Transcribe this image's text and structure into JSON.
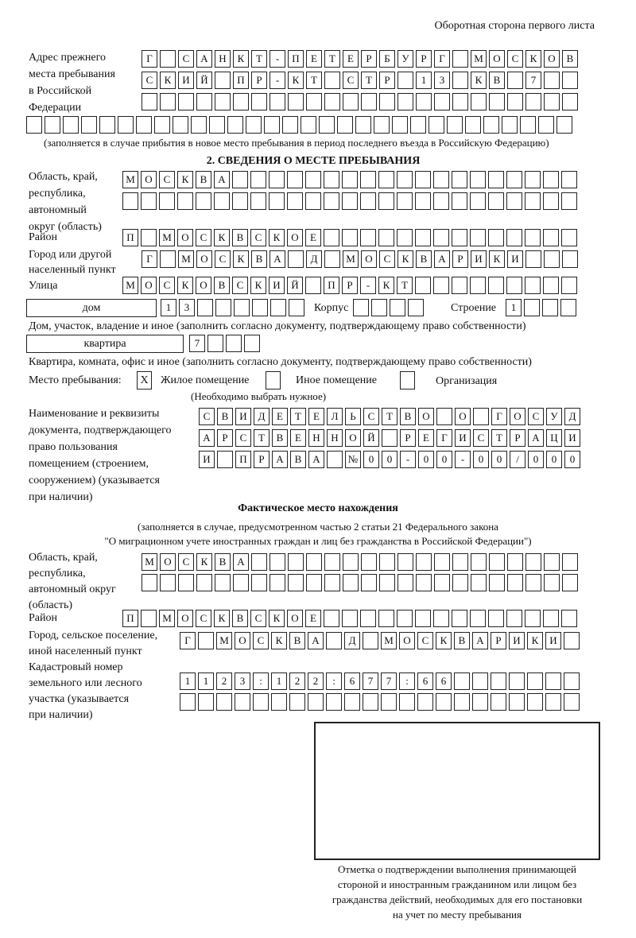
{
  "page_header": "Оборотная сторона первого листа",
  "prev_address": {
    "label": [
      "Адрес прежнего",
      "места пребывания",
      "в Российской",
      "Федерации"
    ],
    "rows": [
      [
        "Г",
        "",
        "С",
        "А",
        "Н",
        "К",
        "Т",
        "-",
        "П",
        "Е",
        "Т",
        "Е",
        "Р",
        "Б",
        "У",
        "Р",
        "Г",
        "",
        "М",
        "О",
        "С",
        "К",
        "О",
        "В"
      ],
      [
        "С",
        "К",
        "И",
        "Й",
        "",
        "П",
        "Р",
        "-",
        "К",
        "Т",
        "",
        "С",
        "Т",
        "Р",
        "",
        "1",
        "3",
        "",
        "К",
        "В",
        "",
        "7",
        "",
        ""
      ],
      [
        "",
        "",
        "",
        "",
        "",
        "",
        "",
        "",
        "",
        "",
        "",
        "",
        "",
        "",
        "",
        "",
        "",
        "",
        "",
        "",
        "",
        "",
        "",
        ""
      ],
      [
        "",
        "",
        "",
        "",
        "",
        "",
        "",
        "",
        "",
        "",
        "",
        "",
        "",
        "",
        "",
        "",
        "",
        "",
        "",
        "",
        "",
        "",
        "",
        "",
        "",
        "",
        "",
        "",
        "",
        ""
      ]
    ],
    "note": "(заполняется в случае прибытия в новое место пребывания в период последнего въезда в Российскую Федерацию)"
  },
  "section2": {
    "title": "2. СВЕДЕНИЯ О МЕСТЕ ПРЕБЫВАНИЯ",
    "region_label": [
      "Область, край,",
      "республика,",
      "автономный",
      "округ (область)"
    ],
    "region_rows": [
      [
        "М",
        "О",
        "С",
        "К",
        "В",
        "А",
        "",
        "",
        "",
        "",
        "",
        "",
        "",
        "",
        "",
        "",
        "",
        "",
        "",
        "",
        "",
        "",
        "",
        "",
        ""
      ],
      [
        "",
        "",
        "",
        "",
        "",
        "",
        "",
        "",
        "",
        "",
        "",
        "",
        "",
        "",
        "",
        "",
        "",
        "",
        "",
        "",
        "",
        "",
        "",
        "",
        ""
      ]
    ],
    "district_label": "Район",
    "district": [
      "П",
      "",
      "М",
      "О",
      "С",
      "К",
      "В",
      "С",
      "К",
      "О",
      "Е",
      "",
      "",
      "",
      "",
      "",
      "",
      "",
      "",
      "",
      "",
      "",
      "",
      "",
      ""
    ],
    "city_label": [
      "Город или другой",
      "населенный пункт"
    ],
    "city": [
      "Г",
      "",
      "М",
      "О",
      "С",
      "К",
      "В",
      "А",
      "",
      "Д",
      "",
      "М",
      "О",
      "С",
      "К",
      "В",
      "А",
      "Р",
      "И",
      "К",
      "И",
      "",
      "",
      ""
    ],
    "street_label": "Улица",
    "street": [
      "М",
      "О",
      "С",
      "К",
      "О",
      "В",
      "С",
      "К",
      "И",
      "Й",
      "",
      "П",
      "Р",
      "-",
      "К",
      "Т",
      "",
      "",
      "",
      "",
      "",
      "",
      "",
      "",
      ""
    ],
    "house_type": "дом",
    "house": [
      "1",
      "3",
      "",
      "",
      "",
      "",
      "",
      ""
    ],
    "korpus_label": "Корпус",
    "korpus": [
      "",
      "",
      "",
      ""
    ],
    "building_label": "Строение",
    "building": [
      "1",
      "",
      "",
      ""
    ],
    "house_note": "Дом, участок, владение и иное (заполнить согласно документу, подтверждающему право собственности)",
    "flat_type": "квартира",
    "flat": [
      "7",
      "",
      "",
      ""
    ],
    "flat_note": "Квартира, комната, офис и иное (заполнить согласно документу, подтверждающему право собственности)",
    "stay_label": "Место пребывания:",
    "stay_options": [
      {
        "label": "Жилое помещение",
        "mark": "X"
      },
      {
        "label": "Иное помещение",
        "mark": ""
      },
      {
        "label": "Организация",
        "mark": ""
      }
    ],
    "stay_note": "(Необходимо выбрать нужное)",
    "doc_label": [
      "Наименование и реквизиты",
      "документа, подтверждающего",
      "право пользования",
      "помещением (строением,",
      "сооружением) (указывается",
      "при наличии)"
    ],
    "doc_rows": [
      [
        "С",
        "В",
        "И",
        "Д",
        "Е",
        "Т",
        "Е",
        "Л",
        "Ь",
        "С",
        "Т",
        "В",
        "О",
        "",
        "О",
        "",
        "Г",
        "О",
        "С",
        "У",
        "Д"
      ],
      [
        "А",
        "Р",
        "С",
        "Т",
        "В",
        "Е",
        "Н",
        "Н",
        "О",
        "Й",
        "",
        "Р",
        "Е",
        "Г",
        "И",
        "С",
        "Т",
        "Р",
        "А",
        "Ц",
        "И"
      ],
      [
        "И",
        "",
        "П",
        "Р",
        "А",
        "В",
        "А",
        "",
        "№",
        "0",
        "0",
        "-",
        "0",
        "0",
        "-",
        "0",
        "0",
        "/",
        "0",
        "0",
        "0"
      ]
    ]
  },
  "actual": {
    "title": "Фактическое место нахождения",
    "note": [
      "(заполняется в случае, предусмотренном частью 2 статьи 21 Федерального закона",
      "\"О миграционном учете иностранных граждан и лиц без гражданства в Российской Федерации\")"
    ],
    "region_label": [
      "Область, край,",
      "республика,",
      "автономный округ",
      "(область)"
    ],
    "region_rows": [
      [
        "М",
        "О",
        "С",
        "К",
        "В",
        "А",
        "",
        "",
        "",
        "",
        "",
        "",
        "",
        "",
        "",
        "",
        "",
        "",
        "",
        "",
        "",
        "",
        "",
        ""
      ],
      [
        "",
        "",
        "",
        "",
        "",
        "",
        "",
        "",
        "",
        "",
        "",
        "",
        "",
        "",
        "",
        "",
        "",
        "",
        "",
        "",
        "",
        "",
        "",
        ""
      ]
    ],
    "district_label": "Район",
    "district": [
      "П",
      "",
      "М",
      "О",
      "С",
      "К",
      "В",
      "С",
      "К",
      "О",
      "Е",
      "",
      "",
      "",
      "",
      "",
      "",
      "",
      "",
      "",
      "",
      "",
      "",
      "",
      ""
    ],
    "city_label": [
      "Город, сельское поселение,",
      "иной населенный пункт"
    ],
    "city": [
      "Г",
      "",
      "М",
      "О",
      "С",
      "К",
      "В",
      "А",
      "",
      "Д",
      "",
      "М",
      "О",
      "С",
      "К",
      "В",
      "А",
      "Р",
      "И",
      "К",
      "И",
      ""
    ],
    "cadastral_label": [
      "Кадастровый номер",
      "земельного или лесного",
      "участка (указывается",
      "при наличии)"
    ],
    "cadastral_rows": [
      [
        "1",
        "1",
        "2",
        "3",
        ":",
        "1",
        "2",
        "2",
        ":",
        "6",
        "7",
        "7",
        ":",
        "6",
        "6",
        "",
        "",
        "",
        "",
        "",
        "",
        ""
      ],
      [
        "",
        "",
        "",
        "",
        "",
        "",
        "",
        "",
        "",
        "",
        "",
        "",
        "",
        "",
        "",
        "",
        "",
        "",
        "",
        "",
        "",
        ""
      ]
    ]
  },
  "stamp_caption": [
    "Отметка о подтверждении выполнения принимающей",
    "стороной и иностранным гражданином или лицом без",
    "гражданства действий, необходимых для его постановки",
    "на учет по месту пребывания"
  ]
}
